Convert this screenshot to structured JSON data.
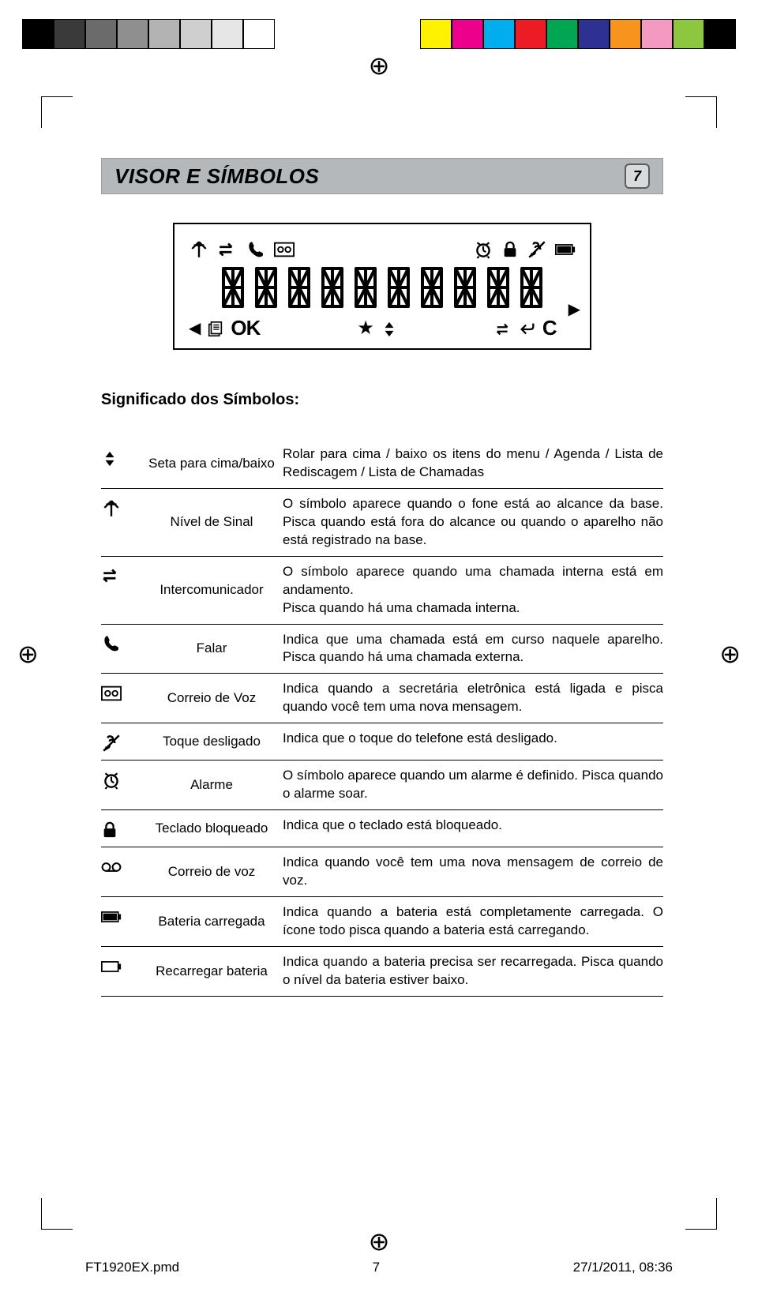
{
  "color_bars_left": [
    "#000000",
    "#3a3a3a",
    "#6b6b6b",
    "#8f8f8f",
    "#b3b3b3",
    "#cfcfcf",
    "#e6e6e6",
    "#ffffff"
  ],
  "color_bars_right": [
    "#fff200",
    "#ec008c",
    "#00aeef",
    "#ed1c24",
    "#00a651",
    "#2e3192",
    "#f7941d",
    "#f49ac1",
    "#8dc63f",
    "#000000"
  ],
  "title": "VISOR E SÍMBOLOS",
  "page_num": "7",
  "subtitle": "Significado dos Símbolos:",
  "lcd": {
    "ok": "OK"
  },
  "symbols": [
    {
      "icon": "updown",
      "label": "Seta para cima/baixo",
      "desc": "Rolar para cima / baixo os itens do menu / Agenda / Lista de Rediscagem / Lista de Chamadas"
    },
    {
      "icon": "antenna",
      "label": "Nível de Sinal",
      "desc": "O símbolo aparece quando o fone está ao alcance da base. Pisca quando está fora do alcance ou quando o aparelho não está registrado na base."
    },
    {
      "icon": "intercom",
      "label": "Intercomunicador",
      "desc": "O símbolo aparece quando uma chamada interna está em andamento.\nPisca quando há uma chamada interna."
    },
    {
      "icon": "handset",
      "label": "Falar",
      "desc": "Indica que uma chamada está em curso naquele aparelho. Pisca quando há uma chamada externa."
    },
    {
      "icon": "tape",
      "label": "Correio de Voz",
      "desc": "Indica quando a secretária eletrônica está ligada e pisca quando você tem uma nova mensagem."
    },
    {
      "icon": "noring",
      "label": "Toque desligado",
      "desc": "Indica que o toque do telefone está desligado."
    },
    {
      "icon": "alarm",
      "label": "Alarme",
      "desc": "O símbolo aparece quando um alarme é definido. Pisca quando o alarme soar."
    },
    {
      "icon": "lock",
      "label": "Teclado bloqueado",
      "desc": "Indica que o teclado está bloqueado."
    },
    {
      "icon": "voicemail",
      "label": "Correio de voz",
      "desc": "Indica quando você tem uma nova mensagem de correio de voz."
    },
    {
      "icon": "batfull",
      "label": "Bateria carregada",
      "desc": "Indica quando a bateria está completamente carregada. O ícone todo pisca quando a bateria está carregando."
    },
    {
      "icon": "batempty",
      "label": "Recarregar bateria",
      "desc": "Indica quando a bateria precisa ser recarregada. Pisca quando o nível da bateria estiver baixo."
    }
  ],
  "footer": {
    "file": "FT1920EX.pmd",
    "page": "7",
    "datetime": "27/1/2011, 08:36"
  }
}
